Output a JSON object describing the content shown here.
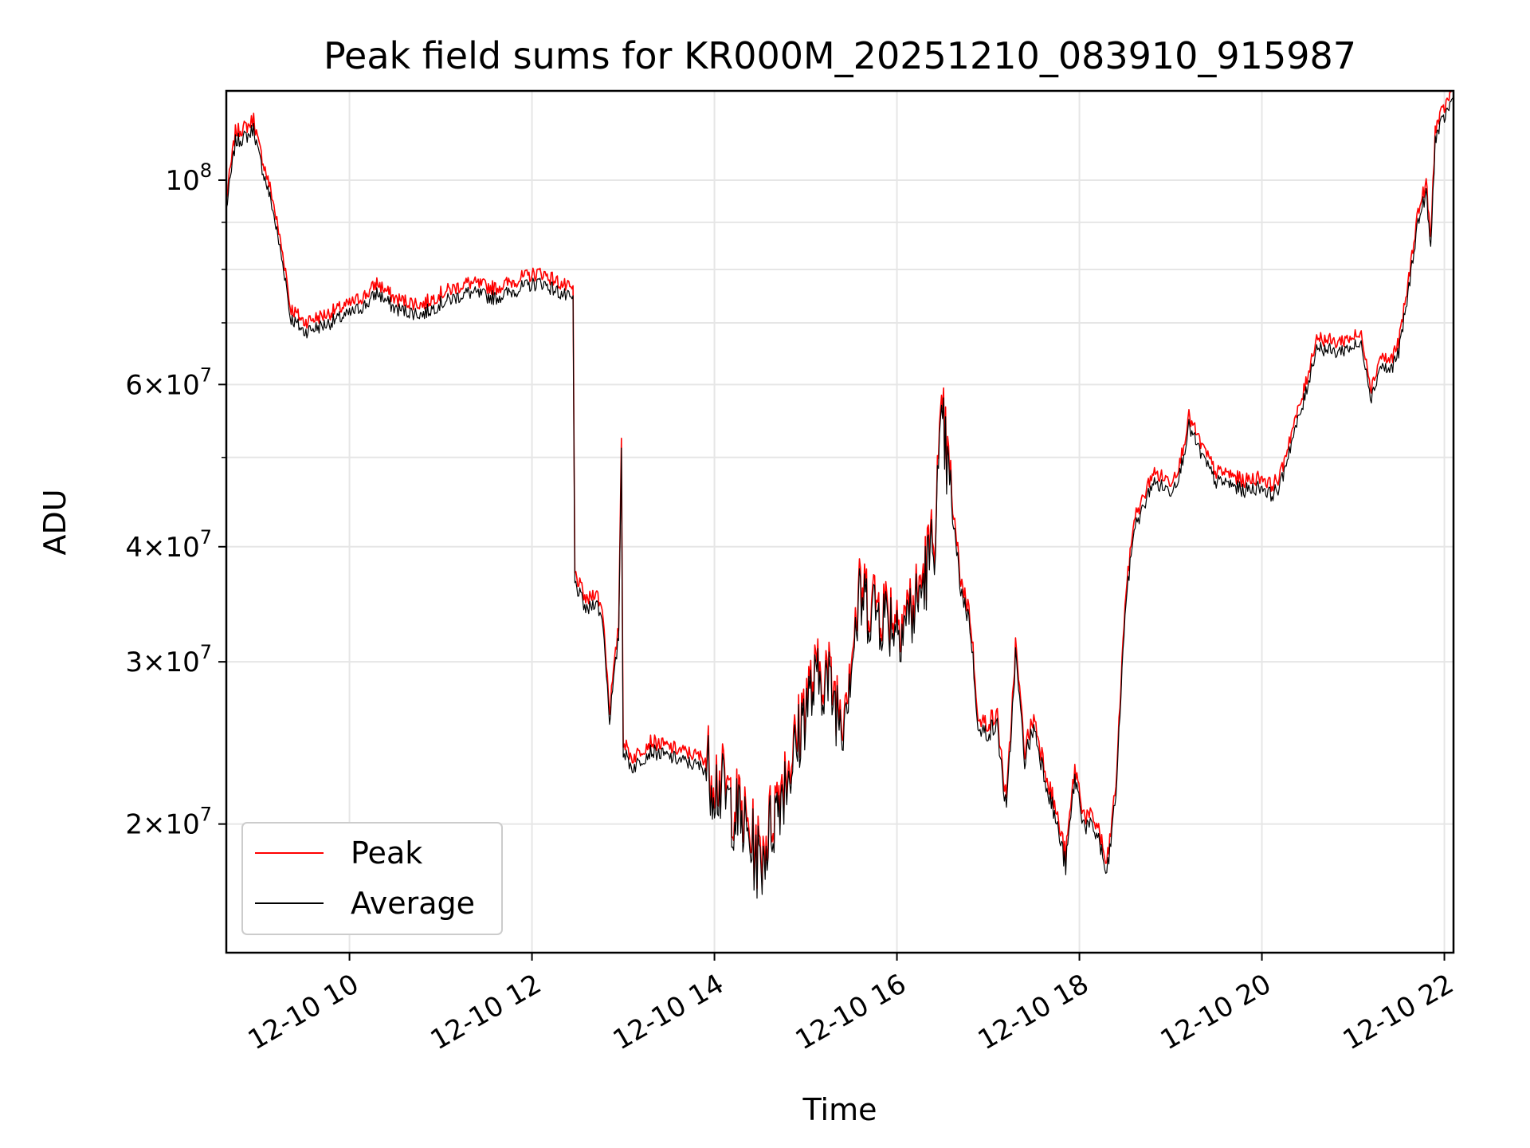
{
  "chart_data": {
    "type": "line",
    "title": "Peak field sums for KR000M_20251210_083910_915987",
    "xlabel": "Time",
    "ylabel": "ADU",
    "yscale": "log",
    "ylim": [
      14500000,
      125000000
    ],
    "xlim_hours": [
      8.65,
      22.1
    ],
    "grid": true,
    "legend_position": "lower-left",
    "x_ticks": [
      {
        "hour": 10,
        "label": "12-10 10"
      },
      {
        "hour": 12,
        "label": "12-10 12"
      },
      {
        "hour": 14,
        "label": "12-10 14"
      },
      {
        "hour": 16,
        "label": "12-10 16"
      },
      {
        "hour": 18,
        "label": "12-10 18"
      },
      {
        "hour": 20,
        "label": "12-10 20"
      },
      {
        "hour": 22,
        "label": "12-10 22"
      }
    ],
    "y_ticks": [
      {
        "value": 20000000,
        "mantissa": "2",
        "base": "10",
        "exp": "7",
        "major": true
      },
      {
        "value": 30000000,
        "mantissa": "3",
        "base": "10",
        "exp": "7",
        "major": true
      },
      {
        "value": 40000000,
        "mantissa": "4",
        "base": "10",
        "exp": "7",
        "major": true
      },
      {
        "value": 60000000,
        "mantissa": "6",
        "base": "10",
        "exp": "7",
        "major": true
      },
      {
        "value": 100000000,
        "mantissa": "",
        "base": "10",
        "exp": "8",
        "major": true
      }
    ],
    "y_minor_ticks": [
      50000000,
      70000000,
      80000000,
      90000000
    ],
    "series": [
      {
        "name": "Peak",
        "color": "#ff0000",
        "offset_factor": 1.025,
        "x_hours": [
          8.65,
          8.75,
          8.9,
          8.95,
          9.0,
          9.15,
          9.3,
          9.35,
          9.5,
          9.7,
          10.0,
          10.2,
          10.3,
          10.5,
          10.8,
          11.0,
          11.3,
          11.6,
          11.9,
          12.1,
          12.3,
          12.45,
          12.47,
          12.6,
          12.7,
          12.78,
          12.85,
          12.95,
          12.98,
          13.0,
          13.1,
          13.3,
          13.6,
          13.9,
          14.1,
          14.3,
          14.5,
          14.6,
          14.75,
          14.9,
          15.0,
          15.2,
          15.4,
          15.6,
          15.8,
          16.0,
          16.2,
          16.4,
          16.5,
          16.6,
          16.7,
          16.8,
          16.9,
          17.1,
          17.2,
          17.3,
          17.4,
          17.5,
          17.6,
          17.75,
          17.85,
          17.95,
          18.05,
          18.2,
          18.3,
          18.4,
          18.5,
          18.6,
          18.7,
          18.8,
          19.0,
          19.1,
          19.2,
          19.35,
          19.5,
          19.6,
          19.8,
          20.0,
          20.1,
          20.2,
          20.3,
          20.45,
          20.6,
          20.8,
          21.0,
          21.1,
          21.2,
          21.3,
          21.4,
          21.5,
          21.6,
          21.7,
          21.8,
          21.85,
          21.9,
          21.95,
          22.0,
          22.05,
          22.1
        ],
        "values": [
          95000000,
          112000000,
          114000000,
          116000000,
          109000000,
          96000000,
          80000000,
          73000000,
          70000000,
          71000000,
          73000000,
          75000000,
          77000000,
          74000000,
          73000000,
          75000000,
          77000000,
          76000000,
          78000000,
          79000000,
          77000000,
          76000000,
          38000000,
          35000000,
          36000000,
          34000000,
          27000000,
          33000000,
          54000000,
          25000000,
          24000000,
          25000000,
          24500000,
          24000000,
          22500000,
          21000000,
          19000000,
          20500000,
          23000000,
          25000000,
          28000000,
          30000000,
          27000000,
          36000000,
          35000000,
          34000000,
          35000000,
          42000000,
          58000000,
          45000000,
          37000000,
          34000000,
          26000000,
          26500000,
          21000000,
          31000000,
          24000000,
          26000000,
          23500000,
          20500000,
          18500000,
          23000000,
          20500000,
          20000000,
          18000000,
          22000000,
          35000000,
          43000000,
          45000000,
          48000000,
          47000000,
          49000000,
          55000000,
          51000000,
          48000000,
          48000000,
          47000000,
          47500000,
          46500000,
          47500000,
          52000000,
          58000000,
          67000000,
          66000000,
          67000000,
          67000000,
          59000000,
          64000000,
          63000000,
          66000000,
          76000000,
          90000000,
          98000000,
          85000000,
          112000000,
          115000000,
          118000000,
          121000000,
          124000000
        ]
      },
      {
        "name": "Average",
        "color": "#000000",
        "offset_factor": 1.0,
        "x_hours": [
          8.65,
          8.75,
          8.9,
          8.95,
          9.0,
          9.15,
          9.3,
          9.35,
          9.5,
          9.7,
          10.0,
          10.2,
          10.3,
          10.5,
          10.8,
          11.0,
          11.3,
          11.6,
          11.9,
          12.1,
          12.3,
          12.45,
          12.47,
          12.6,
          12.7,
          12.78,
          12.85,
          12.95,
          12.98,
          13.0,
          13.1,
          13.3,
          13.6,
          13.9,
          14.1,
          14.3,
          14.5,
          14.6,
          14.75,
          14.9,
          15.0,
          15.2,
          15.4,
          15.6,
          15.8,
          16.0,
          16.2,
          16.4,
          16.5,
          16.6,
          16.7,
          16.8,
          16.9,
          17.1,
          17.2,
          17.3,
          17.4,
          17.5,
          17.6,
          17.75,
          17.85,
          17.95,
          18.05,
          18.2,
          18.3,
          18.4,
          18.5,
          18.6,
          18.7,
          18.8,
          19.0,
          19.1,
          19.2,
          19.35,
          19.5,
          19.6,
          19.8,
          20.0,
          20.1,
          20.2,
          20.3,
          20.45,
          20.6,
          20.8,
          21.0,
          21.1,
          21.2,
          21.3,
          21.4,
          21.5,
          21.6,
          21.7,
          21.8,
          21.85,
          21.9,
          21.95,
          22.0,
          22.05,
          22.1
        ],
        "values": [
          93000000,
          110000000,
          112000000,
          114000000,
          107000000,
          94000000,
          78000000,
          71000000,
          68500000,
          69500000,
          71500000,
          73500000,
          75500000,
          72500000,
          71500000,
          73500000,
          75500000,
          74500000,
          76500000,
          77500000,
          75500000,
          74000000,
          36500000,
          34000000,
          35000000,
          33000000,
          26000000,
          32000000,
          51000000,
          24000000,
          23000000,
          24000000,
          23500000,
          23000000,
          21500000,
          20000000,
          18000000,
          19500000,
          22000000,
          24000000,
          27000000,
          29000000,
          26000000,
          35000000,
          34000000,
          33000000,
          34000000,
          40000000,
          54000000,
          44000000,
          36000000,
          33000000,
          25000000,
          25500000,
          20500000,
          30500000,
          23500000,
          25500000,
          23000000,
          20000000,
          18000000,
          22500000,
          20000000,
          19500000,
          17500000,
          21500000,
          34000000,
          42000000,
          44000000,
          47000000,
          46000000,
          48000000,
          54000000,
          50000000,
          47000000,
          47000000,
          46000000,
          46500000,
          45500000,
          46500000,
          51000000,
          57000000,
          66000000,
          65000000,
          66000000,
          66000000,
          58000000,
          63000000,
          62000000,
          65000000,
          75000000,
          89000000,
          97000000,
          84000000,
          111000000,
          114000000,
          117000000,
          120000000,
          123000000
        ]
      }
    ]
  }
}
